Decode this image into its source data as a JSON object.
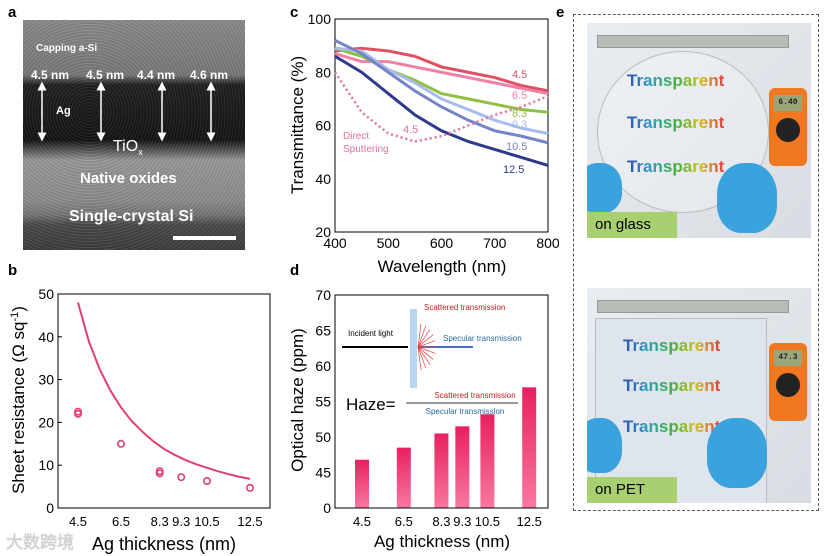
{
  "panel_labels": {
    "a": "a",
    "b": "b",
    "c": "c",
    "d": "d",
    "e": "e"
  },
  "panel_a": {
    "capping": "Capping a-Si",
    "thicknesses": [
      "4.5 nm",
      "4.5 nm",
      "4.4 nm",
      "4.6 nm"
    ],
    "ag": "Ag",
    "tiox": "TiO",
    "tiox_sub": "x",
    "native": "Native oxides",
    "substrate": "Single-crystal Si"
  },
  "panel_e": {
    "word": "Transparent",
    "top_label": "on glass",
    "bottom_label": "on PET",
    "meter_top": "6.40",
    "meter_bottom": "47.3"
  },
  "watermark": "大数跨境",
  "colors": {
    "pink": "#e0406e",
    "red": "#e05060",
    "pink2": "#f080a8",
    "green": "#90c040",
    "lightblue": "#a8bcf0",
    "midblue": "#7484c8",
    "navy": "#2e3a8e",
    "dotted": "#e070a0"
  },
  "chart_data": [
    {
      "id": "b",
      "type": "scatter",
      "xlabel": "Ag thickness (nm)",
      "ylabel": "Sheet resistance (Ω sq",
      "ylabel_sup": "-1",
      "ylabel_end": ")",
      "ylim": [
        0,
        50
      ],
      "yticks": [
        0,
        10,
        20,
        30,
        40,
        50
      ],
      "xticks": [
        "4.5",
        "6.5",
        "8.3",
        "9.3",
        "10.5",
        "12.5"
      ],
      "points": [
        [
          4.5,
          22.5
        ],
        [
          4.5,
          22
        ],
        [
          6.5,
          15
        ],
        [
          8.3,
          8.6
        ],
        [
          8.3,
          8.1
        ],
        [
          9.3,
          7.2
        ],
        [
          10.5,
          6.3
        ],
        [
          12.5,
          4.7
        ]
      ],
      "curve": [
        [
          4.5,
          48
        ],
        [
          5,
          39
        ],
        [
          5.5,
          32.5
        ],
        [
          6,
          27.5
        ],
        [
          6.5,
          23.5
        ],
        [
          7,
          20.3
        ],
        [
          7.5,
          17.8
        ],
        [
          8,
          15.6
        ],
        [
          8.5,
          13.8
        ],
        [
          9,
          12.4
        ],
        [
          9.5,
          11.2
        ],
        [
          10,
          10.2
        ],
        [
          10.5,
          9.4
        ],
        [
          11,
          8.6
        ],
        [
          11.5,
          7.9
        ],
        [
          12,
          7.3
        ],
        [
          12.5,
          6.8
        ]
      ]
    },
    {
      "id": "c",
      "type": "line",
      "xlabel": "Wavelength (nm)",
      "ylabel": "Transmittance (%)",
      "xlim": [
        400,
        800
      ],
      "ylim": [
        20,
        100
      ],
      "xticks": [
        400,
        500,
        600,
        700,
        800
      ],
      "yticks": [
        20,
        40,
        60,
        80,
        100
      ],
      "x": [
        400,
        450,
        500,
        550,
        600,
        650,
        700,
        750,
        800
      ],
      "series": [
        {
          "name": "4.5",
          "color": "#e05060",
          "values": [
            88,
            89,
            88,
            86,
            82,
            80,
            78,
            75,
            73
          ]
        },
        {
          "name": "6.5",
          "color": "#f080a8",
          "values": [
            87,
            84,
            84,
            82,
            80,
            78,
            76,
            74,
            72
          ]
        },
        {
          "name": "8.3",
          "color": "#90c040",
          "values": [
            89,
            86,
            81,
            77,
            72,
            70,
            68,
            66,
            65
          ]
        },
        {
          "name": "9.3",
          "color": "#a8bcf0",
          "values": [
            89,
            88,
            81,
            76,
            70,
            66,
            62,
            59,
            57
          ]
        },
        {
          "name": "10.5",
          "color": "#7484c8",
          "values": [
            92,
            87,
            80,
            73,
            67,
            62,
            58,
            56,
            53.5
          ]
        },
        {
          "name": "12.5",
          "color": "#2e3a8e",
          "values": [
            86,
            80,
            72,
            64,
            58,
            54,
            51,
            48,
            45
          ]
        },
        {
          "name": "4.5",
          "color": "#e070a0",
          "dotted": true,
          "values": [
            80,
            65,
            57,
            54,
            56,
            60,
            64,
            67,
            71
          ]
        }
      ],
      "annotation": [
        "Direct",
        "Sputtering"
      ]
    },
    {
      "id": "d",
      "type": "bar",
      "xlabel": "Ag thickness (nm)",
      "ylabel": "Optical haze (ppm)",
      "yticks": [
        0,
        45,
        50,
        55,
        60,
        65,
        70
      ],
      "categories": [
        "4.5",
        "6.5",
        "8.3",
        "9.3",
        "10.5",
        "12.5"
      ],
      "values": [
        46.8,
        48.5,
        50.5,
        51.5,
        53.2,
        57
      ],
      "inset": {
        "incident": "Incident light",
        "scattered": "Scattered transmission",
        "specular": "Specular transmission",
        "formula_lhs": "Haze=",
        "numerator": "Scattered transmission",
        "denominator": "Specular transmission"
      }
    }
  ]
}
